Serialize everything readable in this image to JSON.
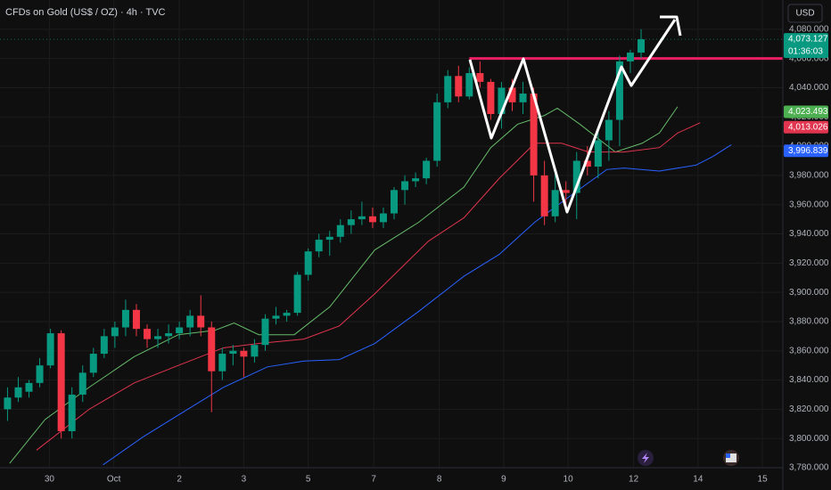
{
  "chart_data": {
    "type": "candlestick",
    "title": "CFDs on Gold (US$ / OZ) · 4h · TVC",
    "currency": "USD",
    "up_color": "#089981",
    "down_color": "#f23645",
    "grid": true,
    "xlim": [
      -0.7,
      72.2
    ],
    "ylim": [
      3780,
      4100
    ],
    "xticks": [
      {
        "value": 3.9,
        "label": "30"
      },
      {
        "value": 9.9,
        "label": "Oct"
      },
      {
        "value": 16.0,
        "label": "2"
      },
      {
        "value": 22.0,
        "label": "3"
      },
      {
        "value": 28.0,
        "label": "5"
      },
      {
        "value": 34.1,
        "label": "7"
      },
      {
        "value": 40.2,
        "label": "8"
      },
      {
        "value": 46.2,
        "label": "9"
      },
      {
        "value": 52.2,
        "label": "10"
      },
      {
        "value": 58.3,
        "label": "12"
      },
      {
        "value": 64.3,
        "label": "14"
      },
      {
        "value": 70.3,
        "label": "15"
      }
    ],
    "yticks": [
      {
        "value": 3780,
        "label": "3,780.000"
      },
      {
        "value": 3800,
        "label": "3,800.000"
      },
      {
        "value": 3820,
        "label": "3,820.000"
      },
      {
        "value": 3840,
        "label": "3,840.000"
      },
      {
        "value": 3860,
        "label": "3,860.000"
      },
      {
        "value": 3880,
        "label": "3,880.000"
      },
      {
        "value": 3900,
        "label": "3,900.000"
      },
      {
        "value": 3920,
        "label": "3,920.000"
      },
      {
        "value": 3940,
        "label": "3,940.000"
      },
      {
        "value": 3960,
        "label": "3,960.000"
      },
      {
        "value": 3980,
        "label": "3,980.000"
      },
      {
        "value": 4000,
        "label": "4,000.000"
      },
      {
        "value": 4020,
        "label": "4,020.000"
      },
      {
        "value": 4040,
        "label": "4,040.000"
      },
      {
        "value": 4060,
        "label": "4,060.000"
      },
      {
        "value": 4080,
        "label": "4,080.000"
      }
    ],
    "open": [
      3820,
      3828,
      3832,
      3838,
      3850,
      3872,
      3805,
      3830,
      3845,
      3858,
      3870,
      3876,
      3888,
      3875,
      3868,
      3870,
      3872,
      3876,
      3884,
      3876,
      3846,
      3858,
      3860,
      3856,
      3864,
      3882,
      3884,
      3886,
      3912,
      3928,
      3936,
      3938,
      3946,
      3950,
      3952,
      3948,
      3954,
      3970,
      3976,
      3978,
      3990,
      4030,
      4048,
      4034,
      4050,
      4044,
      4022,
      4040,
      4030,
      4036,
      3980,
      3952,
      3970,
      3968,
      3990,
      3986,
      4004,
      4018,
      4058,
      4064
    ],
    "high": [
      3835,
      3842,
      3840,
      3855,
      3875,
      3874,
      3835,
      3850,
      3862,
      3875,
      3880,
      3895,
      3892,
      3878,
      3875,
      3878,
      3880,
      3888,
      3898,
      3880,
      3862,
      3864,
      3862,
      3868,
      3885,
      3890,
      3888,
      3914,
      3930,
      3940,
      3942,
      3950,
      3956,
      3962,
      3958,
      3958,
      3972,
      3980,
      3982,
      3992,
      4036,
      4052,
      4055,
      4054,
      4058,
      4046,
      4044,
      4046,
      4044,
      4040,
      3990,
      3982,
      3976,
      3996,
      4000,
      4010,
      4024,
      4062,
      4066,
      4080
    ],
    "low": [
      3812,
      3825,
      3828,
      3835,
      3848,
      3800,
      3800,
      3825,
      3842,
      3855,
      3862,
      3870,
      3870,
      3862,
      3862,
      3865,
      3868,
      3870,
      3870,
      3818,
      3840,
      3850,
      3842,
      3852,
      3860,
      3878,
      3880,
      3884,
      3908,
      3924,
      3925,
      3934,
      3940,
      3946,
      3944,
      3944,
      3950,
      3960,
      3972,
      3974,
      3986,
      4026,
      4030,
      4032,
      4040,
      4018,
      4012,
      4024,
      4022,
      3962,
      3946,
      3948,
      3958,
      3950,
      3980,
      3978,
      3990,
      4000,
      4050,
      4060
    ],
    "close": [
      3828,
      3835,
      3838,
      3850,
      3872,
      3805,
      3830,
      3845,
      3858,
      3870,
      3876,
      3888,
      3875,
      3868,
      3870,
      3872,
      3876,
      3884,
      3876,
      3846,
      3858,
      3860,
      3856,
      3864,
      3882,
      3884,
      3886,
      3912,
      3928,
      3936,
      3938,
      3946,
      3950,
      3952,
      3948,
      3954,
      3970,
      3976,
      3978,
      3990,
      4030,
      4048,
      4034,
      4050,
      4044,
      4022,
      4040,
      4030,
      4036,
      3980,
      3952,
      3970,
      3968,
      3990,
      3986,
      4004,
      4018,
      4058,
      4064,
      4073.127
    ],
    "series": [
      {
        "color": "#66bb6a",
        "x": [
          0.2,
          3.5,
          7.6,
          11.8,
          15.9,
          19.3,
          21.1,
          23.4,
          26.7,
          30.0,
          34.2,
          38.3,
          42.5,
          45.0,
          47.5,
          50.0,
          51.2,
          53.3,
          56.6,
          59.1,
          60.7,
          62.4
        ],
        "values": [
          3783,
          3813,
          3835,
          3856,
          3871,
          3874,
          3879,
          3871,
          3871,
          3890,
          3929,
          3948,
          3972,
          3999,
          4015,
          4021,
          4026,
          4015,
          3996,
          4002,
          4009,
          4027
        ]
      },
      {
        "color": "#e0344f",
        "x": [
          2.7,
          7.6,
          11.8,
          15.9,
          20.1,
          23.4,
          27.6,
          30.9,
          34.2,
          39.2,
          42.5,
          45.8,
          49.1,
          51.6,
          54.1,
          57.4,
          60.7,
          62.4,
          64.5
        ],
        "values": [
          3792,
          3820,
          3838,
          3850,
          3862,
          3865,
          3868,
          3877,
          3899,
          3935,
          3951,
          3978,
          4002,
          4002,
          3996,
          3996,
          3999,
          4009,
          4016
        ]
      },
      {
        "color": "#2962ff",
        "x": [
          8.9,
          12.6,
          15.9,
          20.1,
          24.2,
          27.6,
          30.9,
          34.2,
          38.3,
          42.5,
          45.8,
          49.1,
          52.4,
          55.8,
          57.4,
          60.7,
          64.1,
          65.7,
          67.4
        ],
        "values": [
          3782,
          3801,
          3816,
          3835,
          3849,
          3853,
          3854,
          3865,
          3887,
          3911,
          3926,
          3948,
          3966,
          3984,
          3985,
          3983,
          3987,
          3993,
          4001
        ]
      }
    ],
    "resistance": 4060,
    "price_labels": [
      {
        "value": 4073.127,
        "label": "4,073.127",
        "color": "#089981"
      },
      {
        "value": 4023.493,
        "label": "4,023.493",
        "color": "#4caf50"
      },
      {
        "value": 4013.026,
        "label": "4,013.026",
        "color": "#e0344f"
      },
      {
        "value": 3996.839,
        "label": "3,996.839",
        "color": "#2962ff"
      }
    ],
    "countdown": "01:36:03"
  }
}
